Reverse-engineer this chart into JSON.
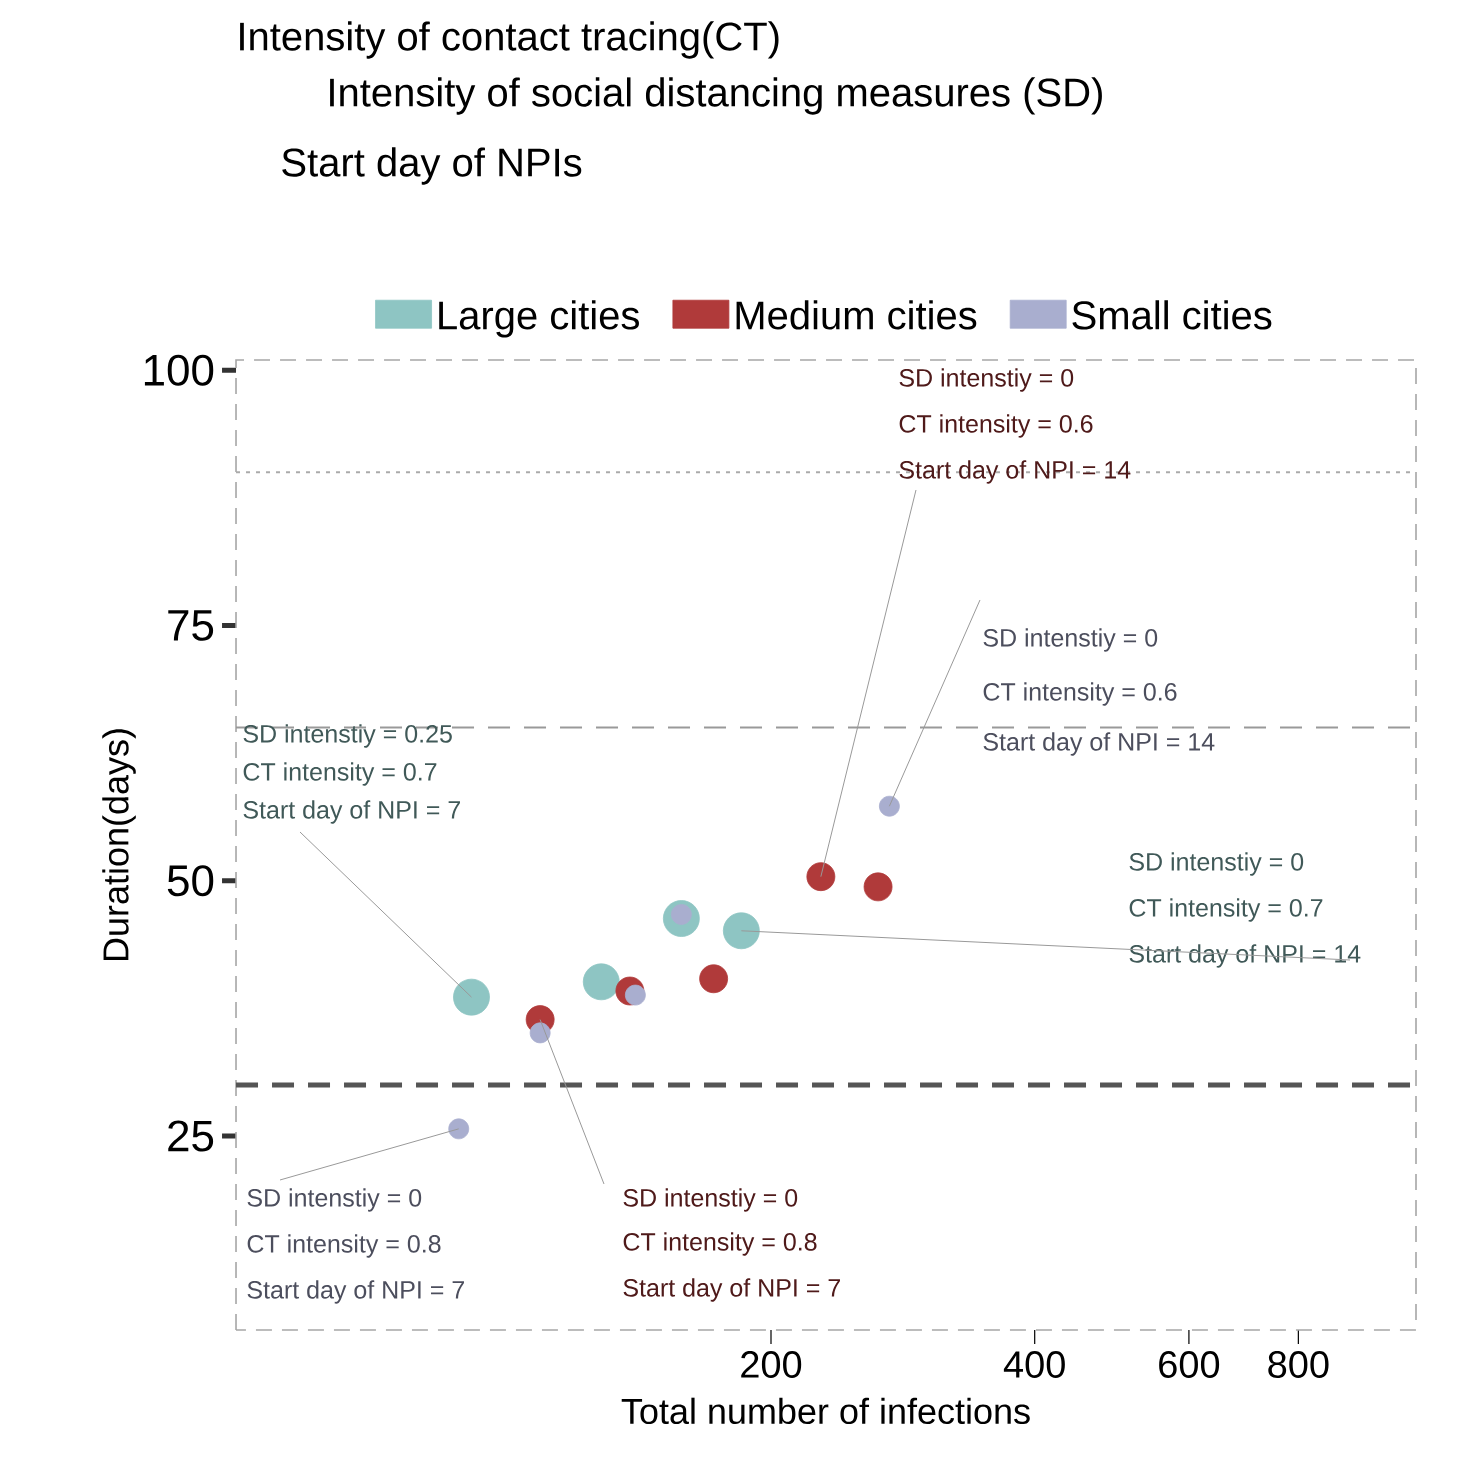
{
  "chart_data": {
    "type": "scatter",
    "xlabel": "Total number of infections",
    "ylabel": "Duration(days)",
    "log": "x",
    "xlim": [
      49,
      1090
    ],
    "ylim": [
      6,
      101
    ],
    "xticks": [
      200,
      400,
      600,
      800
    ],
    "yticks": [
      25,
      50,
      75,
      100
    ],
    "grid": false,
    "legend": "top",
    "series": [
      {
        "name": "Large cities",
        "color": "#8ec5c3",
        "x": [
          91,
          128,
          158,
          185
        ],
        "values": [
          38.6,
          40.1,
          46.3,
          45.1
        ]
      },
      {
        "name": "Medium cities",
        "color": "#b03a3a",
        "x": [
          109,
          138,
          172,
          228,
          265
        ],
        "values": [
          36.4,
          39.2,
          40.4,
          50.4,
          49.4
        ]
      },
      {
        "name": "Small cities",
        "color": "#a9aecf",
        "x": [
          88,
          109,
          140,
          158,
          273
        ],
        "values": [
          25.7,
          35.1,
          38.8,
          46.7,
          57.3
        ]
      }
    ],
    "ref_lines": [
      {
        "axis": "y",
        "value": 30,
        "color": "#555555",
        "line_style": "dashed"
      },
      {
        "axis": "y",
        "value": 65,
        "color": "#999999",
        "line_style": "dashed"
      },
      {
        "axis": "y",
        "value": 90,
        "color": "#aaaaaa",
        "line_style": "dotted"
      }
    ],
    "annotations": [
      "Intensity of contact tracing(CT)",
      "Intensity of social distancing measures (SD)",
      "Start day of NPIs",
      "SD intenstiy = 0",
      "CT intensity = 0.6",
      {
        "text": "Start day of NPI = 14",
        "x": 228,
        "y": 50.4
      },
      {
        "text": "SD intenstiy = 0",
        "x": 273,
        "y": 57.3
      },
      "CT intensity = 0.6",
      "Start day of NPI = 14",
      "SD intenstiy = 0",
      "CT intensity = 0.7",
      {
        "text": "Start day of NPI = 14",
        "x": 185,
        "y": 45.1
      },
      "SD intenstiy = 0.25",
      "CT intensity = 0.7",
      {
        "text": "Start day of NPI = 7",
        "x": 91,
        "y": 38.6
      },
      {
        "text": "SD intenstiy = 0",
        "x": 109,
        "y": 36.4
      },
      "CT intensity = 0.8",
      "Start day of NPI = 7",
      {
        "text": "SD intenstiy = 0",
        "x": 88,
        "y": 25.7
      },
      "CT intensity = 0.8",
      "Start day of NPI = 7"
    ]
  }
}
